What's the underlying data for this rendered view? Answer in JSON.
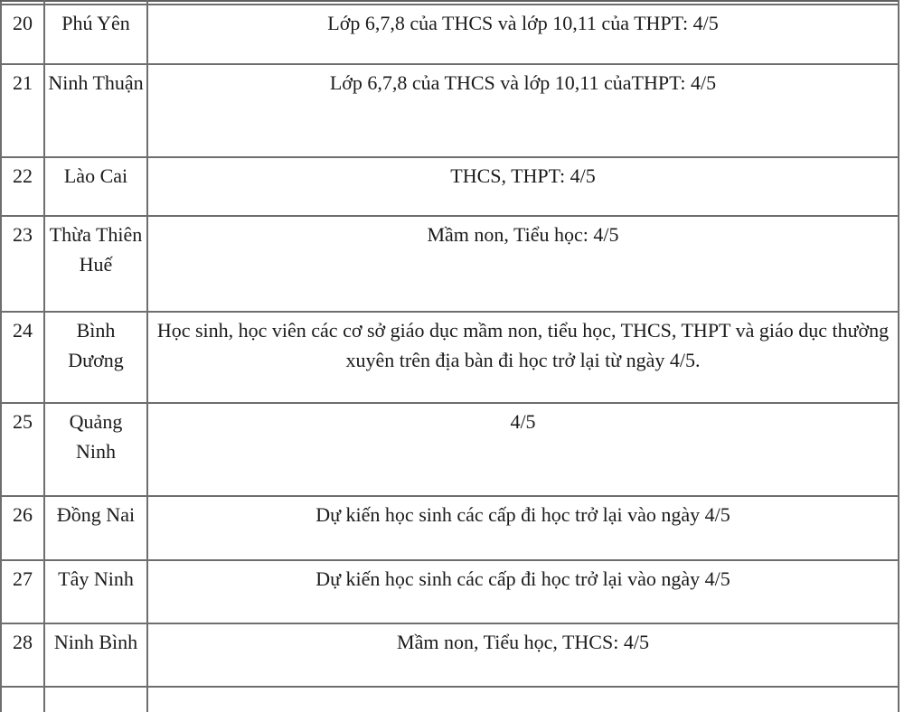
{
  "table": {
    "description_columns": [
      "row-number",
      "province-name",
      "reopening-detail"
    ],
    "rows": [
      {
        "number": "20",
        "province": "Phú Yên",
        "detail": "Lớp 6,7,8 của THCS và lớp 10,11 của THPT: 4/5"
      },
      {
        "number": "21",
        "province": "Ninh Thuận",
        "detail": "Lớp 6,7,8 của THCS và lớp 10,11 củaTHPT: 4/5"
      },
      {
        "number": "22",
        "province": "Lào Cai",
        "detail": "THCS, THPT: 4/5"
      },
      {
        "number": "23",
        "province": "Thừa Thiên Huế",
        "detail": "Mầm non, Tiểu học: 4/5"
      },
      {
        "number": "24",
        "province": "Bình Dương",
        "detail": "Học sinh, học viên các cơ sở giáo dục mầm non, tiểu học, THCS, THPT và giáo dục thường xuyên trên địa bàn đi học trở lại từ ngày 4/5."
      },
      {
        "number": "25",
        "province": "Quảng Ninh",
        "detail": "4/5"
      },
      {
        "number": "26",
        "province": "Đồng Nai",
        "detail": "Dự kiến học sinh các cấp đi học trở lại vào ngày 4/5"
      },
      {
        "number": "27",
        "province": "Tây Ninh",
        "detail": "Dự kiến học sinh các cấp đi học trở lại vào ngày 4/5"
      },
      {
        "number": "28",
        "province": "Ninh Bình",
        "detail": "Mầm non, Tiểu học, THCS: 4/5"
      }
    ]
  },
  "colors": {
    "border": "#6e6e6e",
    "text": "#1b1b1b",
    "background": "#ffffff"
  }
}
